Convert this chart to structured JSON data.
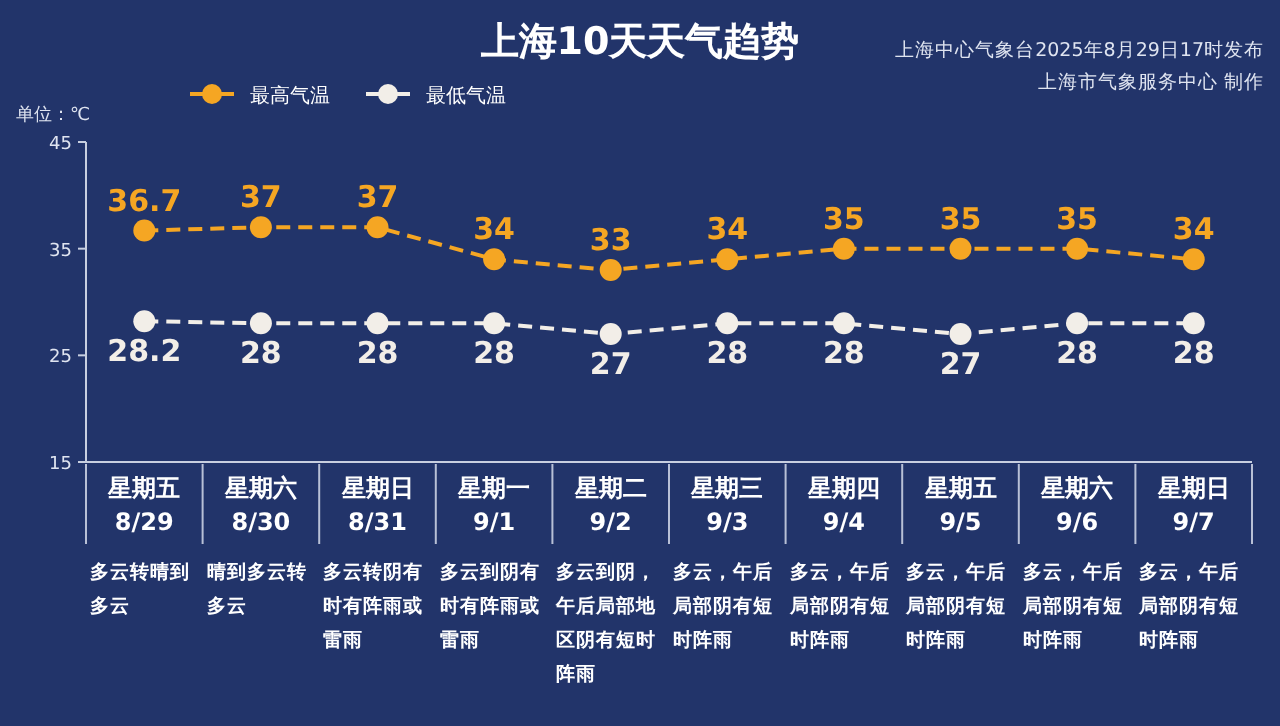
{
  "chart_data": {
    "type": "line",
    "title": "上海10天天气趋势",
    "ylabel": "单位：℃",
    "annotations": [
      "上海中心气象台2025年8月29日17时发布",
      "上海市气象服务中心 制作",
      "多云转晴到多云",
      "晴到多云转多云",
      "多云转阴有时有阵雨或雷雨",
      "多云到阴有时有阵雨或雷雨",
      "多云到阴，午后局部地区阴有短时阵雨",
      "多云，午后局部阴有短时阵雨",
      "多云，午后局部阴有短时阵雨",
      "多云，午后局部阴有短时阵雨",
      "多云，午后局部阴有短时阵雨",
      "多云，午后局部阴有短时阵雨"
    ],
    "categories": [
      "星期五\n8/29",
      "星期六\n8/30",
      "星期日\n8/31",
      "星期一\n9/1",
      "星期二\n9/2",
      "星期三\n9/3",
      "星期四\n9/4",
      "星期五\n9/5",
      "星期六\n9/6",
      "星期日\n9/7"
    ],
    "series": [
      {
        "name": "最高气温",
        "color": "#f5a623",
        "values": [
          36.7,
          37,
          37,
          34,
          33,
          34,
          35,
          35,
          35,
          34
        ]
      },
      {
        "name": "最低气温",
        "color": "#f2eee8",
        "values": [
          28.2,
          28,
          28,
          28,
          27,
          28,
          28,
          27,
          28,
          28
        ]
      }
    ],
    "ylim": [
      15,
      45
    ],
    "yticks": [
      15,
      25,
      35,
      45
    ],
    "data_labels": true,
    "legend": "top left",
    "marker": "circle",
    "line_style": "dashed",
    "grid": false
  }
}
